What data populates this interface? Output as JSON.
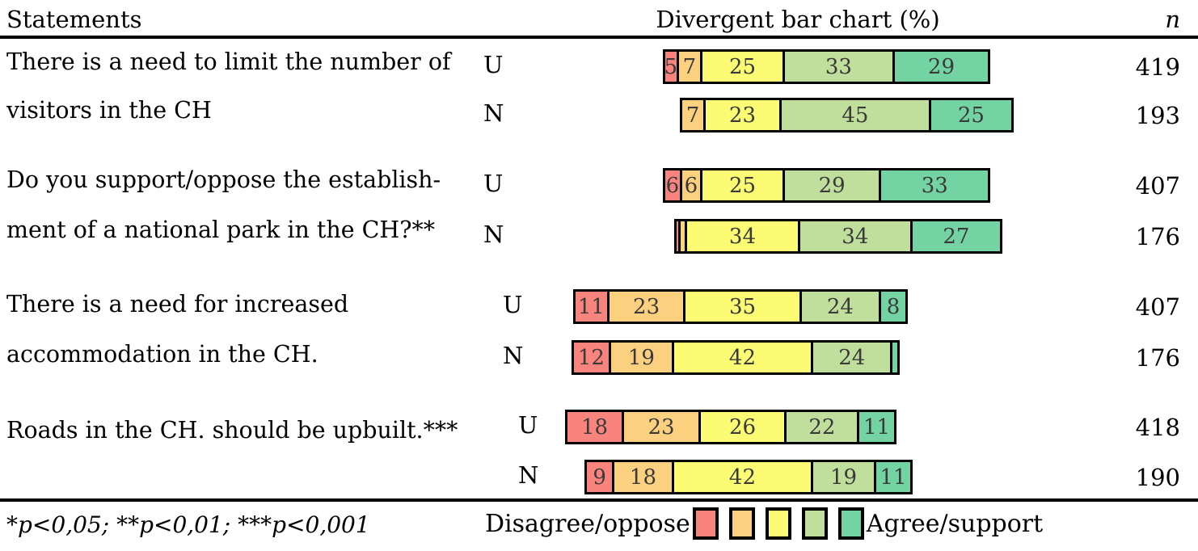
{
  "header": {
    "statements": "Statements",
    "chart": "Divergent bar chart (%)",
    "n": "n"
  },
  "colors": {
    "red": "#F9837D",
    "orange": "#FBD180",
    "yellow": "#FBFB74",
    "light_green": "#C0DF9D",
    "green": "#74D3A2",
    "border": "#000000",
    "number_text": "#3a3a3a"
  },
  "legend": {
    "left_label": "Disagree/oppose",
    "right_label": "Agree/support",
    "swatches": [
      "red",
      "orange",
      "yellow",
      "light_green",
      "green"
    ]
  },
  "footnote": "*p<0,05; **p<0,01; ***p<0,001",
  "chart_data": {
    "type": "bar",
    "subtype": "diverging-stacked-likert",
    "title": "Divergent bar chart (%)",
    "scale_categories": [
      "Disagree/oppose",
      "",
      "",
      "",
      "Agree/support"
    ],
    "alignment": "centered-on-neutral-midpoint",
    "groups": [
      {
        "statement_lines": [
          "There is a need to limit the number of",
          "visitors in the CH"
        ],
        "rows": [
          {
            "label": "U",
            "n": "419",
            "values": [
              5,
              7,
              25,
              33,
              29
            ],
            "labels": [
              "5",
              "7",
              "25",
              "33",
              "29"
            ]
          },
          {
            "label": "N",
            "n": "193",
            "values": [
              0,
              7,
              23,
              45,
              25
            ],
            "labels": [
              "",
              "7",
              "23",
              "45",
              "25"
            ]
          }
        ]
      },
      {
        "statement_lines": [
          "Do you support/oppose the establish-",
          "ment of a national park in the CH?**"
        ],
        "rows": [
          {
            "label": "U",
            "n": "407",
            "values": [
              6,
              6,
              25,
              29,
              33
            ],
            "labels": [
              "6",
              "6",
              "25",
              "29",
              "33"
            ]
          },
          {
            "label": "N",
            "n": "176",
            "values": [
              2,
              2,
              34,
              34,
              27
            ],
            "labels": [
              "",
              "",
              "34",
              "34",
              "27"
            ]
          }
        ]
      },
      {
        "statement_lines": [
          "There is a need for increased",
          "accommodation in the CH."
        ],
        "rows": [
          {
            "label": "U",
            "n": "407",
            "values": [
              11,
              23,
              35,
              24,
              8
            ],
            "labels": [
              "11",
              "23",
              "35",
              "24",
              "8"
            ]
          },
          {
            "label": "N",
            "n": "176",
            "values": [
              12,
              19,
              42,
              24,
              2
            ],
            "labels": [
              "12",
              "19",
              "42",
              "24",
              ""
            ]
          }
        ]
      },
      {
        "statement_lines": [
          "Roads in the CH. should be upbuilt.***"
        ],
        "rows": [
          {
            "label": "U",
            "n": "418",
            "values": [
              18,
              23,
              26,
              22,
              11
            ],
            "labels": [
              "18",
              "23",
              "26",
              "22",
              "11"
            ]
          },
          {
            "label": "N",
            "n": "190",
            "values": [
              9,
              18,
              42,
              19,
              11
            ],
            "labels": [
              "9",
              "18",
              "42",
              "19",
              "11"
            ]
          }
        ]
      }
    ]
  }
}
